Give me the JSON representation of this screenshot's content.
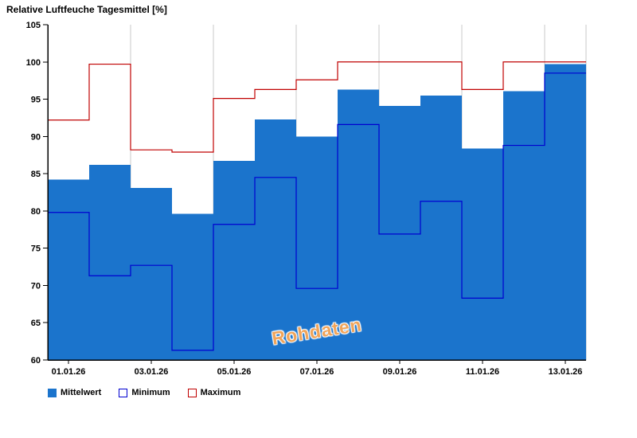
{
  "window": {
    "title": "Relative Luftfeuche Tagesmittel [%]"
  },
  "watermark": "Rohdaten",
  "legend": {
    "items": [
      {
        "label": "Mittelwert",
        "style": "filled",
        "color": "#1b74cc"
      },
      {
        "label": "Minimum",
        "style": "outline",
        "color": "#0000d0"
      },
      {
        "label": "Maximum",
        "style": "outline",
        "color": "#c00000"
      }
    ],
    "position": "bottom-left"
  },
  "axes": {
    "y_tick_labels": [
      "105",
      "100",
      "95",
      "90",
      "85",
      "80",
      "75",
      "70",
      "65",
      "60"
    ],
    "x_tick_labels": [
      "01.01.26",
      "03.01.26",
      "05.01.26",
      "07.01.26",
      "09.01.26",
      "11.01.26",
      "13.01.26"
    ]
  },
  "chart_data": {
    "type": "bar",
    "title": "Relative Luftfeuche Tagesmittel [%]",
    "categories": [
      "01.01.26",
      "02.01.26",
      "03.01.26",
      "04.01.26",
      "05.01.26",
      "06.01.26",
      "07.01.26",
      "08.01.26",
      "09.01.26",
      "10.01.26",
      "11.01.26",
      "12.01.26",
      "13.01.26"
    ],
    "x_tick_labels": [
      "01.01.26",
      "03.01.26",
      "05.01.26",
      "07.01.26",
      "09.01.26",
      "11.01.26",
      "13.01.26"
    ],
    "series": [
      {
        "name": "Mittelwert",
        "render": "bar",
        "color": "#1b74cc",
        "values": [
          84.2,
          86.2,
          83.1,
          79.6,
          86.7,
          92.3,
          90.0,
          96.3,
          94.1,
          95.5,
          88.4,
          96.1,
          99.7
        ]
      },
      {
        "name": "Minimum",
        "render": "step-line",
        "color": "#0000d0",
        "values": [
          79.8,
          71.3,
          72.7,
          61.3,
          78.2,
          84.5,
          69.6,
          91.6,
          76.9,
          81.3,
          68.3,
          88.8,
          98.5
        ]
      },
      {
        "name": "Maximum",
        "render": "step-line",
        "color": "#c00000",
        "values": [
          92.2,
          99.7,
          88.2,
          87.9,
          95.1,
          96.3,
          97.6,
          100.0,
          100.0,
          100.0,
          96.3,
          100.0,
          100.0
        ]
      }
    ],
    "ylim": [
      60,
      105
    ],
    "ytick_step": 5,
    "xlabel": "",
    "ylabel": "",
    "grid": "vertical gridlines every 2 days, light gray",
    "grid_color": "#c8c8c8",
    "legend_position": "bottom-left",
    "watermark": "Rohdaten",
    "watermark_color": "#f0a45a"
  }
}
